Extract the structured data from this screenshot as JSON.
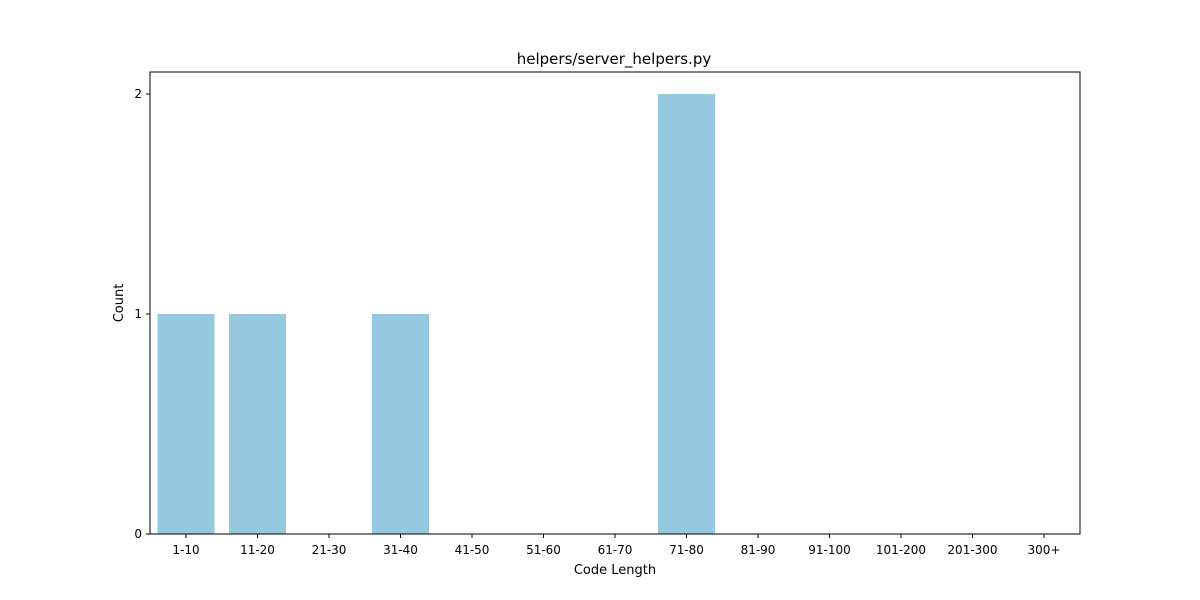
{
  "chart_data": {
    "type": "bar",
    "title": "helpers/server_helpers.py",
    "xlabel": "Code Length",
    "ylabel": "Count",
    "categories": [
      "1-10",
      "11-20",
      "21-30",
      "31-40",
      "41-50",
      "51-60",
      "61-70",
      "71-80",
      "81-90",
      "91-100",
      "101-200",
      "201-300",
      "300+"
    ],
    "values": [
      1,
      1,
      0,
      1,
      0,
      0,
      0,
      2,
      0,
      0,
      0,
      0,
      0
    ],
    "ylim": [
      0,
      2.1
    ],
    "yticks": [
      "0",
      "1",
      "2"
    ],
    "bar_color": "#96c9df",
    "grid": false,
    "legend": "none"
  }
}
